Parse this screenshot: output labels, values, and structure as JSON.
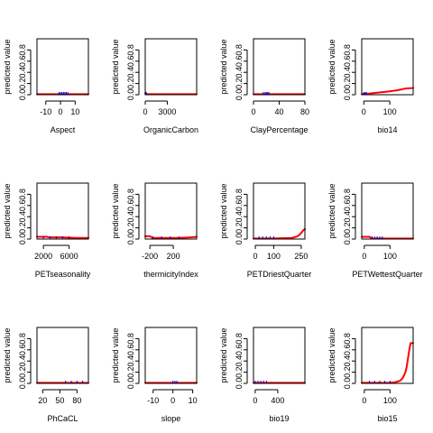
{
  "chart_data": [
    {
      "type": "line",
      "xlabel": "Aspect",
      "ylabel": "predicted value",
      "xlim": [
        -16,
        19
      ],
      "ylim": [
        0,
        1
      ],
      "xticks": [
        -10,
        0,
        10
      ],
      "xtick_labels": [
        "-10",
        "0",
        "10"
      ],
      "yticks": [
        0,
        0.2,
        0.4,
        0.6,
        0.8
      ],
      "ytick_labels": [
        "0.0",
        "0.2",
        "0.4",
        "0.6",
        "0.8"
      ],
      "series": [
        {
          "color": "#ff0000",
          "x": [
            -16,
            -5,
            0,
            5,
            10,
            19
          ],
          "y": [
            0.01,
            0.01,
            0.01,
            0.01,
            0.01,
            0.01
          ]
        }
      ],
      "rug": {
        "color": "#0000ff",
        "x": [
          -1,
          0,
          1,
          2,
          3,
          4,
          5
        ]
      }
    },
    {
      "type": "line",
      "xlabel": "OrganicCarbon",
      "ylabel": "predicted value",
      "xlim": [
        0,
        7000
      ],
      "ylim": [
        0,
        1
      ],
      "xticks": [
        0,
        3000
      ],
      "xtick_labels": [
        "0",
        "3000"
      ],
      "yticks": [
        0,
        0.2,
        0.4,
        0.6,
        0.8
      ],
      "ytick_labels": [
        "0.0",
        "0.2",
        "0.4",
        "0.6",
        "0.8"
      ],
      "series": [
        {
          "color": "#ff0000",
          "x": [
            0,
            200,
            1000,
            3000,
            5000,
            7000
          ],
          "y": [
            0.02,
            0.01,
            0.01,
            0.01,
            0.01,
            0.01
          ]
        }
      ],
      "rug": {
        "color": "#0000ff",
        "x": [
          20,
          60,
          100,
          150
        ]
      }
    },
    {
      "type": "line",
      "xlabel": "ClayPercentage",
      "ylabel": "predicted value",
      "xlim": [
        0,
        80
      ],
      "ylim": [
        0,
        1
      ],
      "xticks": [
        0,
        40,
        80
      ],
      "xtick_labels": [
        "0",
        "40",
        "80"
      ],
      "yticks": [
        0,
        0.2,
        0.4,
        0.6,
        0.8
      ],
      "ytick_labels": [
        "0.0",
        "0.2",
        "0.4",
        "0.6",
        "0.8"
      ],
      "series": [
        {
          "color": "#ff0000",
          "x": [
            0,
            10,
            20,
            30,
            50,
            80
          ],
          "y": [
            0.01,
            0.01,
            0.01,
            0.01,
            0.01,
            0.01
          ]
        }
      ],
      "rug": {
        "color": "#0000ff",
        "x": [
          15,
          18,
          20,
          22,
          24
        ]
      }
    },
    {
      "type": "line",
      "xlabel": "bio14",
      "ylabel": "predicted value",
      "xlim": [
        -8,
        190
      ],
      "ylim": [
        0,
        1
      ],
      "xticks": [
        0,
        100
      ],
      "xtick_labels": [
        "0",
        "100"
      ],
      "yticks": [
        0,
        0.2,
        0.4,
        0.6,
        0.8
      ],
      "ytick_labels": [
        "0.0",
        "0.2",
        "0.4",
        "0.6",
        "0.8"
      ],
      "series": [
        {
          "color": "#ff0000",
          "x": [
            -8,
            20,
            60,
            100,
            130,
            160,
            190
          ],
          "y": [
            0.01,
            0.02,
            0.04,
            0.06,
            0.08,
            0.11,
            0.12
          ]
        }
      ],
      "rug": {
        "color": "#0000ff",
        "x": [
          0,
          5,
          10
        ]
      }
    },
    {
      "type": "line",
      "xlabel": "PETseasonality",
      "ylabel": "predicted value",
      "xlim": [
        1000,
        9000
      ],
      "ylim": [
        0,
        1
      ],
      "xticks": [
        2000,
        6000
      ],
      "xtick_labels": [
        "2000",
        "6000"
      ],
      "yticks": [
        0,
        0.2,
        0.4,
        0.6,
        0.8
      ],
      "ytick_labels": [
        "0.0",
        "0.2",
        "0.4",
        "0.6",
        "0.8"
      ],
      "series": [
        {
          "color": "#ff0000",
          "x": [
            1000,
            2500,
            3000,
            5000,
            7000,
            9000
          ],
          "y": [
            0.04,
            0.04,
            0.03,
            0.03,
            0.02,
            0.02
          ]
        }
      ],
      "rug": {
        "color": "#0000ff",
        "x": [
          2000,
          3000,
          4000,
          5000,
          6000
        ]
      }
    },
    {
      "type": "line",
      "xlabel": "thermicityIndex",
      "ylabel": "predicted value",
      "xlim": [
        -280,
        600
      ],
      "ylim": [
        0,
        1
      ],
      "xticks": [
        -200,
        200
      ],
      "xtick_labels": [
        "-200",
        "200"
      ],
      "yticks": [
        0,
        0.2,
        0.4,
        0.6,
        0.8
      ],
      "ytick_labels": [
        "0.0",
        "0.2",
        "0.4",
        "0.6",
        "0.8"
      ],
      "series": [
        {
          "color": "#ff0000",
          "x": [
            -280,
            -200,
            -150,
            0,
            300,
            500,
            600
          ],
          "y": [
            0.05,
            0.05,
            0.02,
            0.02,
            0.02,
            0.03,
            0.04
          ]
        }
      ],
      "rug": {
        "color": "#0000ff",
        "x": [
          -150,
          0,
          150,
          300
        ]
      }
    },
    {
      "type": "line",
      "xlabel": "PETDriestQuarter",
      "ylabel": "predicted value",
      "xlim": [
        -10,
        270
      ],
      "ylim": [
        0,
        1
      ],
      "xticks": [
        0,
        100,
        250
      ],
      "xtick_labels": [
        "0",
        "100",
        "250"
      ],
      "yticks": [
        0,
        0.2,
        0.4,
        0.6,
        0.8
      ],
      "ytick_labels": [
        "0.0",
        "0.2",
        "0.4",
        "0.6",
        "0.8"
      ],
      "series": [
        {
          "color": "#ff0000",
          "x": [
            -10,
            100,
            200,
            230,
            245,
            255,
            262,
            270
          ],
          "y": [
            0.01,
            0.01,
            0.02,
            0.05,
            0.09,
            0.13,
            0.16,
            0.18
          ]
        }
      ],
      "rug": {
        "color": "#0000ff",
        "x": [
          20,
          40,
          60,
          80,
          100
        ]
      }
    },
    {
      "type": "line",
      "xlabel": "PETWettestQuarter",
      "ylabel": "predicted value",
      "xlim": [
        -10,
        190
      ],
      "ylim": [
        0,
        1
      ],
      "xticks": [
        0,
        100
      ],
      "xtick_labels": [
        "0",
        "100"
      ],
      "yticks": [
        0,
        0.2,
        0.4,
        0.6,
        0.8
      ],
      "ytick_labels": [
        "0.0",
        "0.2",
        "0.4",
        "0.6",
        "0.8"
      ],
      "series": [
        {
          "color": "#ff0000",
          "x": [
            -10,
            20,
            30,
            100,
            190
          ],
          "y": [
            0.04,
            0.04,
            0.01,
            0.01,
            0.01
          ]
        }
      ],
      "rug": {
        "color": "#0000ff",
        "x": [
          30,
          40,
          50,
          60,
          70
        ]
      }
    },
    {
      "type": "line",
      "xlabel": "PhCaCL",
      "ylabel": "predicted value",
      "xlim": [
        10,
        100
      ],
      "ylim": [
        0,
        1
      ],
      "xticks": [
        20,
        50,
        80
      ],
      "xtick_labels": [
        "20",
        "50",
        "80"
      ],
      "yticks": [
        0,
        0.2,
        0.4,
        0.6,
        0.8
      ],
      "ytick_labels": [
        "0.0",
        "0.2",
        "0.4",
        "0.6",
        "0.8"
      ],
      "series": [
        {
          "color": "#ff0000",
          "x": [
            10,
            40,
            60,
            80,
            100
          ],
          "y": [
            0.01,
            0.01,
            0.01,
            0.01,
            0.01
          ]
        }
      ],
      "rug": {
        "color": "#0000ff",
        "x": [
          60,
          70,
          80,
          90
        ]
      }
    },
    {
      "type": "line",
      "xlabel": "slope",
      "ylabel": "predicted value",
      "xlim": [
        -14,
        12
      ],
      "ylim": [
        0,
        1
      ],
      "xticks": [
        -10,
        0,
        10
      ],
      "xtick_labels": [
        "-10",
        "0",
        "10"
      ],
      "yticks": [
        0,
        0.2,
        0.4,
        0.6,
        0.8
      ],
      "ytick_labels": [
        "0.0",
        "0.2",
        "0.4",
        "0.6",
        "0.8"
      ],
      "series": [
        {
          "color": "#ff0000",
          "x": [
            -14,
            -5,
            0,
            5,
            12
          ],
          "y": [
            0.01,
            0.01,
            0.01,
            0.01,
            0.01
          ]
        }
      ],
      "rug": {
        "color": "#0000ff",
        "x": [
          0,
          1,
          2
        ]
      }
    },
    {
      "type": "line",
      "xlabel": "bio19",
      "ylabel": "predicted value",
      "xlim": [
        -30,
        880
      ],
      "ylim": [
        0,
        1
      ],
      "xticks": [
        0,
        400
      ],
      "xtick_labels": [
        "0",
        "400"
      ],
      "yticks": [
        0,
        0.2,
        0.4,
        0.6,
        0.8
      ],
      "ytick_labels": [
        "0.0",
        "0.2",
        "0.4",
        "0.6",
        "0.8"
      ],
      "series": [
        {
          "color": "#ff0000",
          "x": [
            -30,
            200,
            400,
            600,
            880
          ],
          "y": [
            0.01,
            0.01,
            0.01,
            0.01,
            0.01
          ]
        }
      ],
      "rug": {
        "color": "#0000ff",
        "x": [
          0,
          50,
          100,
          150,
          200
        ]
      }
    },
    {
      "type": "line",
      "xlabel": "bio15",
      "ylabel": "predicted value",
      "xlim": [
        -10,
        190
      ],
      "ylim": [
        0,
        1
      ],
      "xticks": [
        0,
        100
      ],
      "xtick_labels": [
        "0",
        "100"
      ],
      "yticks": [
        0,
        0.2,
        0.4,
        0.6,
        0.8
      ],
      "ytick_labels": [
        "0.0",
        "0.2",
        "0.4",
        "0.6",
        "0.8"
      ],
      "series": [
        {
          "color": "#ff0000",
          "x": [
            -10,
            100,
            120,
            140,
            150,
            160,
            165,
            170,
            175,
            180,
            190
          ],
          "y": [
            0.01,
            0.01,
            0.02,
            0.05,
            0.1,
            0.2,
            0.3,
            0.45,
            0.6,
            0.72,
            0.72
          ]
        }
      ],
      "rug": {
        "color": "#0000ff",
        "x": [
          20,
          40,
          60,
          80,
          100
        ]
      }
    }
  ]
}
